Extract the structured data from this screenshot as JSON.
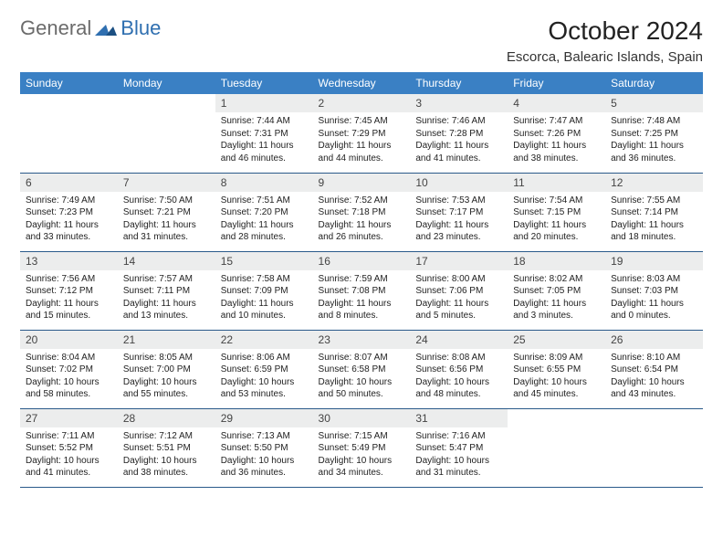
{
  "logo": {
    "part1": "General",
    "part2": "Blue"
  },
  "title": "October 2024",
  "subtitle": "Escorca, Balearic Islands, Spain",
  "colors": {
    "header_bg": "#3a80c4",
    "header_text": "#ffffff",
    "daynum_bg": "#eceded",
    "row_border": "#2a5a8a",
    "logo_gray": "#6b6b6b",
    "logo_blue": "#2f6fb0"
  },
  "weekdays": [
    "Sunday",
    "Monday",
    "Tuesday",
    "Wednesday",
    "Thursday",
    "Friday",
    "Saturday"
  ],
  "weeks": [
    [
      {
        "blank": true
      },
      {
        "blank": true
      },
      {
        "day": "1",
        "sunrise": "Sunrise: 7:44 AM",
        "sunset": "Sunset: 7:31 PM",
        "daylight": "Daylight: 11 hours and 46 minutes."
      },
      {
        "day": "2",
        "sunrise": "Sunrise: 7:45 AM",
        "sunset": "Sunset: 7:29 PM",
        "daylight": "Daylight: 11 hours and 44 minutes."
      },
      {
        "day": "3",
        "sunrise": "Sunrise: 7:46 AM",
        "sunset": "Sunset: 7:28 PM",
        "daylight": "Daylight: 11 hours and 41 minutes."
      },
      {
        "day": "4",
        "sunrise": "Sunrise: 7:47 AM",
        "sunset": "Sunset: 7:26 PM",
        "daylight": "Daylight: 11 hours and 38 minutes."
      },
      {
        "day": "5",
        "sunrise": "Sunrise: 7:48 AM",
        "sunset": "Sunset: 7:25 PM",
        "daylight": "Daylight: 11 hours and 36 minutes."
      }
    ],
    [
      {
        "day": "6",
        "sunrise": "Sunrise: 7:49 AM",
        "sunset": "Sunset: 7:23 PM",
        "daylight": "Daylight: 11 hours and 33 minutes."
      },
      {
        "day": "7",
        "sunrise": "Sunrise: 7:50 AM",
        "sunset": "Sunset: 7:21 PM",
        "daylight": "Daylight: 11 hours and 31 minutes."
      },
      {
        "day": "8",
        "sunrise": "Sunrise: 7:51 AM",
        "sunset": "Sunset: 7:20 PM",
        "daylight": "Daylight: 11 hours and 28 minutes."
      },
      {
        "day": "9",
        "sunrise": "Sunrise: 7:52 AM",
        "sunset": "Sunset: 7:18 PM",
        "daylight": "Daylight: 11 hours and 26 minutes."
      },
      {
        "day": "10",
        "sunrise": "Sunrise: 7:53 AM",
        "sunset": "Sunset: 7:17 PM",
        "daylight": "Daylight: 11 hours and 23 minutes."
      },
      {
        "day": "11",
        "sunrise": "Sunrise: 7:54 AM",
        "sunset": "Sunset: 7:15 PM",
        "daylight": "Daylight: 11 hours and 20 minutes."
      },
      {
        "day": "12",
        "sunrise": "Sunrise: 7:55 AM",
        "sunset": "Sunset: 7:14 PM",
        "daylight": "Daylight: 11 hours and 18 minutes."
      }
    ],
    [
      {
        "day": "13",
        "sunrise": "Sunrise: 7:56 AM",
        "sunset": "Sunset: 7:12 PM",
        "daylight": "Daylight: 11 hours and 15 minutes."
      },
      {
        "day": "14",
        "sunrise": "Sunrise: 7:57 AM",
        "sunset": "Sunset: 7:11 PM",
        "daylight": "Daylight: 11 hours and 13 minutes."
      },
      {
        "day": "15",
        "sunrise": "Sunrise: 7:58 AM",
        "sunset": "Sunset: 7:09 PM",
        "daylight": "Daylight: 11 hours and 10 minutes."
      },
      {
        "day": "16",
        "sunrise": "Sunrise: 7:59 AM",
        "sunset": "Sunset: 7:08 PM",
        "daylight": "Daylight: 11 hours and 8 minutes."
      },
      {
        "day": "17",
        "sunrise": "Sunrise: 8:00 AM",
        "sunset": "Sunset: 7:06 PM",
        "daylight": "Daylight: 11 hours and 5 minutes."
      },
      {
        "day": "18",
        "sunrise": "Sunrise: 8:02 AM",
        "sunset": "Sunset: 7:05 PM",
        "daylight": "Daylight: 11 hours and 3 minutes."
      },
      {
        "day": "19",
        "sunrise": "Sunrise: 8:03 AM",
        "sunset": "Sunset: 7:03 PM",
        "daylight": "Daylight: 11 hours and 0 minutes."
      }
    ],
    [
      {
        "day": "20",
        "sunrise": "Sunrise: 8:04 AM",
        "sunset": "Sunset: 7:02 PM",
        "daylight": "Daylight: 10 hours and 58 minutes."
      },
      {
        "day": "21",
        "sunrise": "Sunrise: 8:05 AM",
        "sunset": "Sunset: 7:00 PM",
        "daylight": "Daylight: 10 hours and 55 minutes."
      },
      {
        "day": "22",
        "sunrise": "Sunrise: 8:06 AM",
        "sunset": "Sunset: 6:59 PM",
        "daylight": "Daylight: 10 hours and 53 minutes."
      },
      {
        "day": "23",
        "sunrise": "Sunrise: 8:07 AM",
        "sunset": "Sunset: 6:58 PM",
        "daylight": "Daylight: 10 hours and 50 minutes."
      },
      {
        "day": "24",
        "sunrise": "Sunrise: 8:08 AM",
        "sunset": "Sunset: 6:56 PM",
        "daylight": "Daylight: 10 hours and 48 minutes."
      },
      {
        "day": "25",
        "sunrise": "Sunrise: 8:09 AM",
        "sunset": "Sunset: 6:55 PM",
        "daylight": "Daylight: 10 hours and 45 minutes."
      },
      {
        "day": "26",
        "sunrise": "Sunrise: 8:10 AM",
        "sunset": "Sunset: 6:54 PM",
        "daylight": "Daylight: 10 hours and 43 minutes."
      }
    ],
    [
      {
        "day": "27",
        "sunrise": "Sunrise: 7:11 AM",
        "sunset": "Sunset: 5:52 PM",
        "daylight": "Daylight: 10 hours and 41 minutes."
      },
      {
        "day": "28",
        "sunrise": "Sunrise: 7:12 AM",
        "sunset": "Sunset: 5:51 PM",
        "daylight": "Daylight: 10 hours and 38 minutes."
      },
      {
        "day": "29",
        "sunrise": "Sunrise: 7:13 AM",
        "sunset": "Sunset: 5:50 PM",
        "daylight": "Daylight: 10 hours and 36 minutes."
      },
      {
        "day": "30",
        "sunrise": "Sunrise: 7:15 AM",
        "sunset": "Sunset: 5:49 PM",
        "daylight": "Daylight: 10 hours and 34 minutes."
      },
      {
        "day": "31",
        "sunrise": "Sunrise: 7:16 AM",
        "sunset": "Sunset: 5:47 PM",
        "daylight": "Daylight: 10 hours and 31 minutes."
      },
      {
        "blank": true
      },
      {
        "blank": true
      }
    ]
  ]
}
